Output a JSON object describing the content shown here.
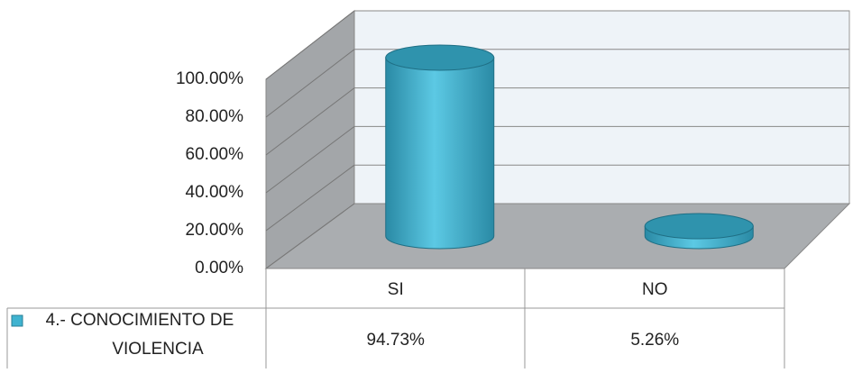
{
  "chart_data": {
    "type": "bar3d",
    "categories": [
      "SI",
      "NO"
    ],
    "series": [
      {
        "name": "4.- CONOCIMIENTO DE VIOLENCIA",
        "color": "#3fb3d0",
        "values": [
          94.73,
          5.26
        ],
        "value_labels": [
          "94.73%",
          "5.26%"
        ]
      }
    ],
    "ylim": [
      0,
      100
    ],
    "yticks": [
      {
        "value": 0,
        "label": "0.00%"
      },
      {
        "value": 20,
        "label": "20.00%"
      },
      {
        "value": 40,
        "label": "40.00%"
      },
      {
        "value": 60,
        "label": "60.00%"
      },
      {
        "value": 80,
        "label": "80.00%"
      },
      {
        "value": 100,
        "label": "100.00%"
      }
    ],
    "grid": true
  }
}
